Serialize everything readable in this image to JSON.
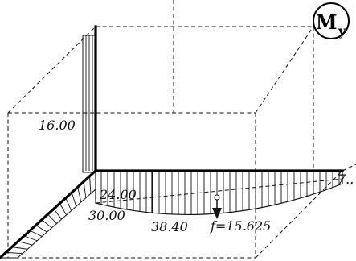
{
  "diagram_title": {
    "main": "M",
    "subscript": "y"
  },
  "values": {
    "column_top": "16.00",
    "beam_end_upper": "24.00",
    "beam_end_lower": "30.00",
    "beam_mid": "38.40",
    "sag": "f=15.625",
    "right_end": "7.."
  }
}
